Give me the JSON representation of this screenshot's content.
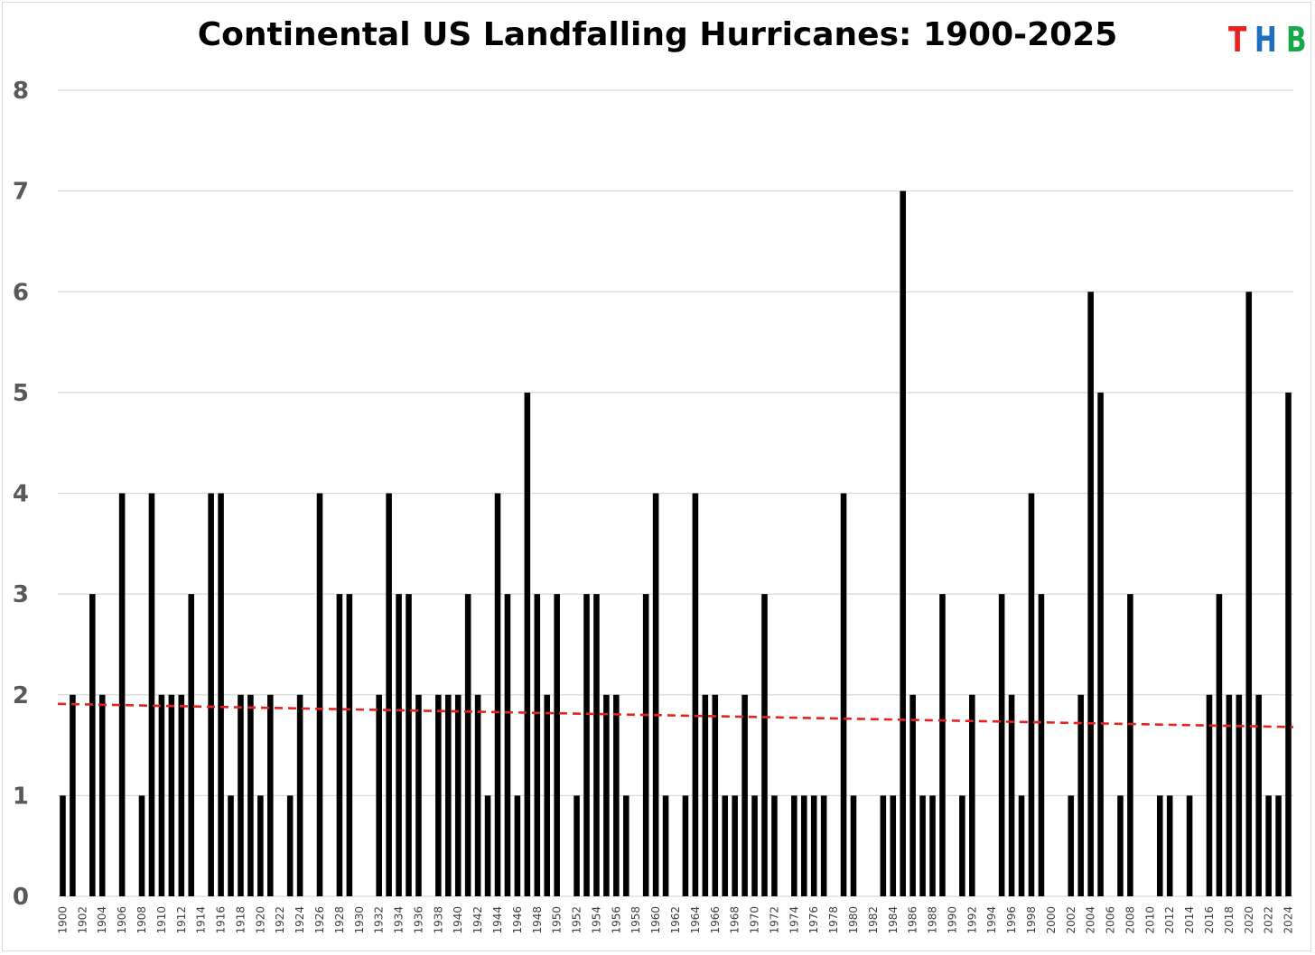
{
  "chart_data": {
    "type": "bar",
    "title": "Continental US Landfalling Hurricanes: 1900-2025",
    "xlabel": "",
    "ylabel": "",
    "ylim": [
      0,
      8
    ],
    "yticks": [
      "0",
      "1",
      "2",
      "3",
      "4",
      "5",
      "6",
      "7",
      "8"
    ],
    "x": [
      1900,
      1901,
      1902,
      1903,
      1904,
      1905,
      1906,
      1907,
      1908,
      1909,
      1910,
      1911,
      1912,
      1913,
      1914,
      1915,
      1916,
      1917,
      1918,
      1919,
      1920,
      1921,
      1922,
      1923,
      1924,
      1925,
      1926,
      1927,
      1928,
      1929,
      1930,
      1931,
      1932,
      1933,
      1934,
      1935,
      1936,
      1937,
      1938,
      1939,
      1940,
      1941,
      1942,
      1943,
      1944,
      1945,
      1946,
      1947,
      1948,
      1949,
      1950,
      1951,
      1952,
      1953,
      1954,
      1955,
      1956,
      1957,
      1958,
      1959,
      1960,
      1961,
      1962,
      1963,
      1964,
      1965,
      1966,
      1967,
      1968,
      1969,
      1970,
      1971,
      1972,
      1973,
      1974,
      1975,
      1976,
      1977,
      1978,
      1979,
      1980,
      1981,
      1982,
      1983,
      1984,
      1985,
      1986,
      1987,
      1988,
      1989,
      1990,
      1991,
      1992,
      1993,
      1994,
      1995,
      1996,
      1997,
      1998,
      1999,
      2000,
      2001,
      2002,
      2003,
      2004,
      2005,
      2006,
      2007,
      2008,
      2009,
      2010,
      2011,
      2012,
      2013,
      2014,
      2015,
      2016,
      2017,
      2018,
      2019,
      2020,
      2021,
      2022,
      2023,
      2024
    ],
    "values": [
      1,
      2,
      0,
      3,
      2,
      0,
      4,
      0,
      1,
      4,
      2,
      2,
      2,
      3,
      0,
      4,
      4,
      1,
      2,
      2,
      1,
      2,
      0,
      1,
      2,
      0,
      4,
      0,
      3,
      3,
      0,
      0,
      2,
      4,
      3,
      3,
      2,
      0,
      2,
      2,
      2,
      3,
      2,
      1,
      4,
      3,
      1,
      5,
      3,
      2,
      3,
      0,
      1,
      3,
      3,
      2,
      2,
      1,
      0,
      3,
      4,
      1,
      0,
      1,
      4,
      2,
      2,
      1,
      1,
      2,
      1,
      3,
      1,
      0,
      1,
      1,
      1,
      1,
      0,
      4,
      1,
      0,
      0,
      1,
      1,
      7,
      2,
      1,
      1,
      3,
      0,
      1,
      2,
      0,
      0,
      3,
      2,
      1,
      4,
      3,
      0,
      0,
      1,
      2,
      6,
      5,
      0,
      1,
      3,
      0,
      0,
      1,
      1,
      0,
      1,
      0,
      2,
      3,
      2,
      2,
      6,
      2,
      1,
      1,
      5
    ],
    "bar_color": "#000000",
    "trendline": {
      "type": "linear",
      "style": "dashed",
      "color": "#e8211e",
      "start_value": 1.91,
      "end_value": 1.68
    },
    "grid": true,
    "legend": "none"
  },
  "branding": {
    "logo_letters": [
      {
        "char": "T",
        "color": "#e8211e"
      },
      {
        "char": "H",
        "color": "#1f6fc1"
      },
      {
        "char": "B",
        "color": "#17a84a"
      }
    ]
  }
}
